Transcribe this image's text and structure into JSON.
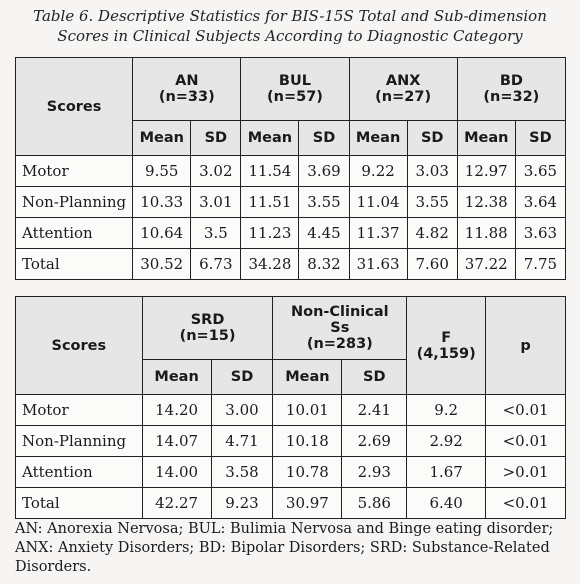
{
  "caption": {
    "line1": "Table 6. Descriptive Statistics for BIS-15S Total and Sub-dimension",
    "line2": "Scores in Clinical Subjects According to Diagnostic Category"
  },
  "table1": {
    "scores_header": "Scores",
    "groups": [
      {
        "name": "AN",
        "n": "(n=33)"
      },
      {
        "name": "BUL",
        "n": "(n=57)"
      },
      {
        "name": "ANX",
        "n": "(n=27)"
      },
      {
        "name": "BD",
        "n": "(n=32)"
      }
    ],
    "mean_label": "Mean",
    "sd_label": "SD",
    "rows": [
      {
        "label": "Motor",
        "values": [
          "9.55",
          "3.02",
          "11.54",
          "3.69",
          "9.22",
          "3.03",
          "12.97",
          "3.65"
        ]
      },
      {
        "label": "Non-Planning",
        "values": [
          "10.33",
          "3.01",
          "11.51",
          "3.55",
          "11.04",
          "3.55",
          "12.38",
          "3.64"
        ]
      },
      {
        "label": "Attention",
        "values": [
          "10.64",
          "3.5",
          "11.23",
          "4.45",
          "11.37",
          "4.82",
          "11.88",
          "3.63"
        ]
      },
      {
        "label": "Total",
        "values": [
          "30.52",
          "6.73",
          "34.28",
          "8.32",
          "31.63",
          "7.60",
          "37.22",
          "7.75"
        ]
      }
    ]
  },
  "table2": {
    "scores_header": "Scores",
    "groups": [
      {
        "name": "SRD",
        "n": "(n=15)"
      },
      {
        "name": "Non-Clinical Ss",
        "n": "(n=283)"
      }
    ],
    "f_header": "F",
    "f_df": "(4,159)",
    "p_header": "p",
    "mean_label": "Mean",
    "sd_label": "SD",
    "rows": [
      {
        "label": "Motor",
        "values": [
          "14.20",
          "3.00",
          "10.01",
          "2.41",
          "9.2",
          "<0.01"
        ]
      },
      {
        "label": "Non-Planning",
        "values": [
          "14.07",
          "4.71",
          "10.18",
          "2.69",
          "2.92",
          "<0.01"
        ]
      },
      {
        "label": "Attention",
        "values": [
          "14.00",
          "3.58",
          "10.78",
          "2.93",
          "1.67",
          ">0.01"
        ]
      },
      {
        "label": "Total",
        "values": [
          "42.27",
          "9.23",
          "30.97",
          "5.86",
          "6.40",
          "<0.01"
        ]
      }
    ]
  },
  "footnote": "AN: Anorexia Nervosa; BUL: Bulimia Nervosa and Binge eating disorder; ANX: Anxiety Disorders; BD: Bipolar Disorders; SRD: Substance-Related Disorders."
}
